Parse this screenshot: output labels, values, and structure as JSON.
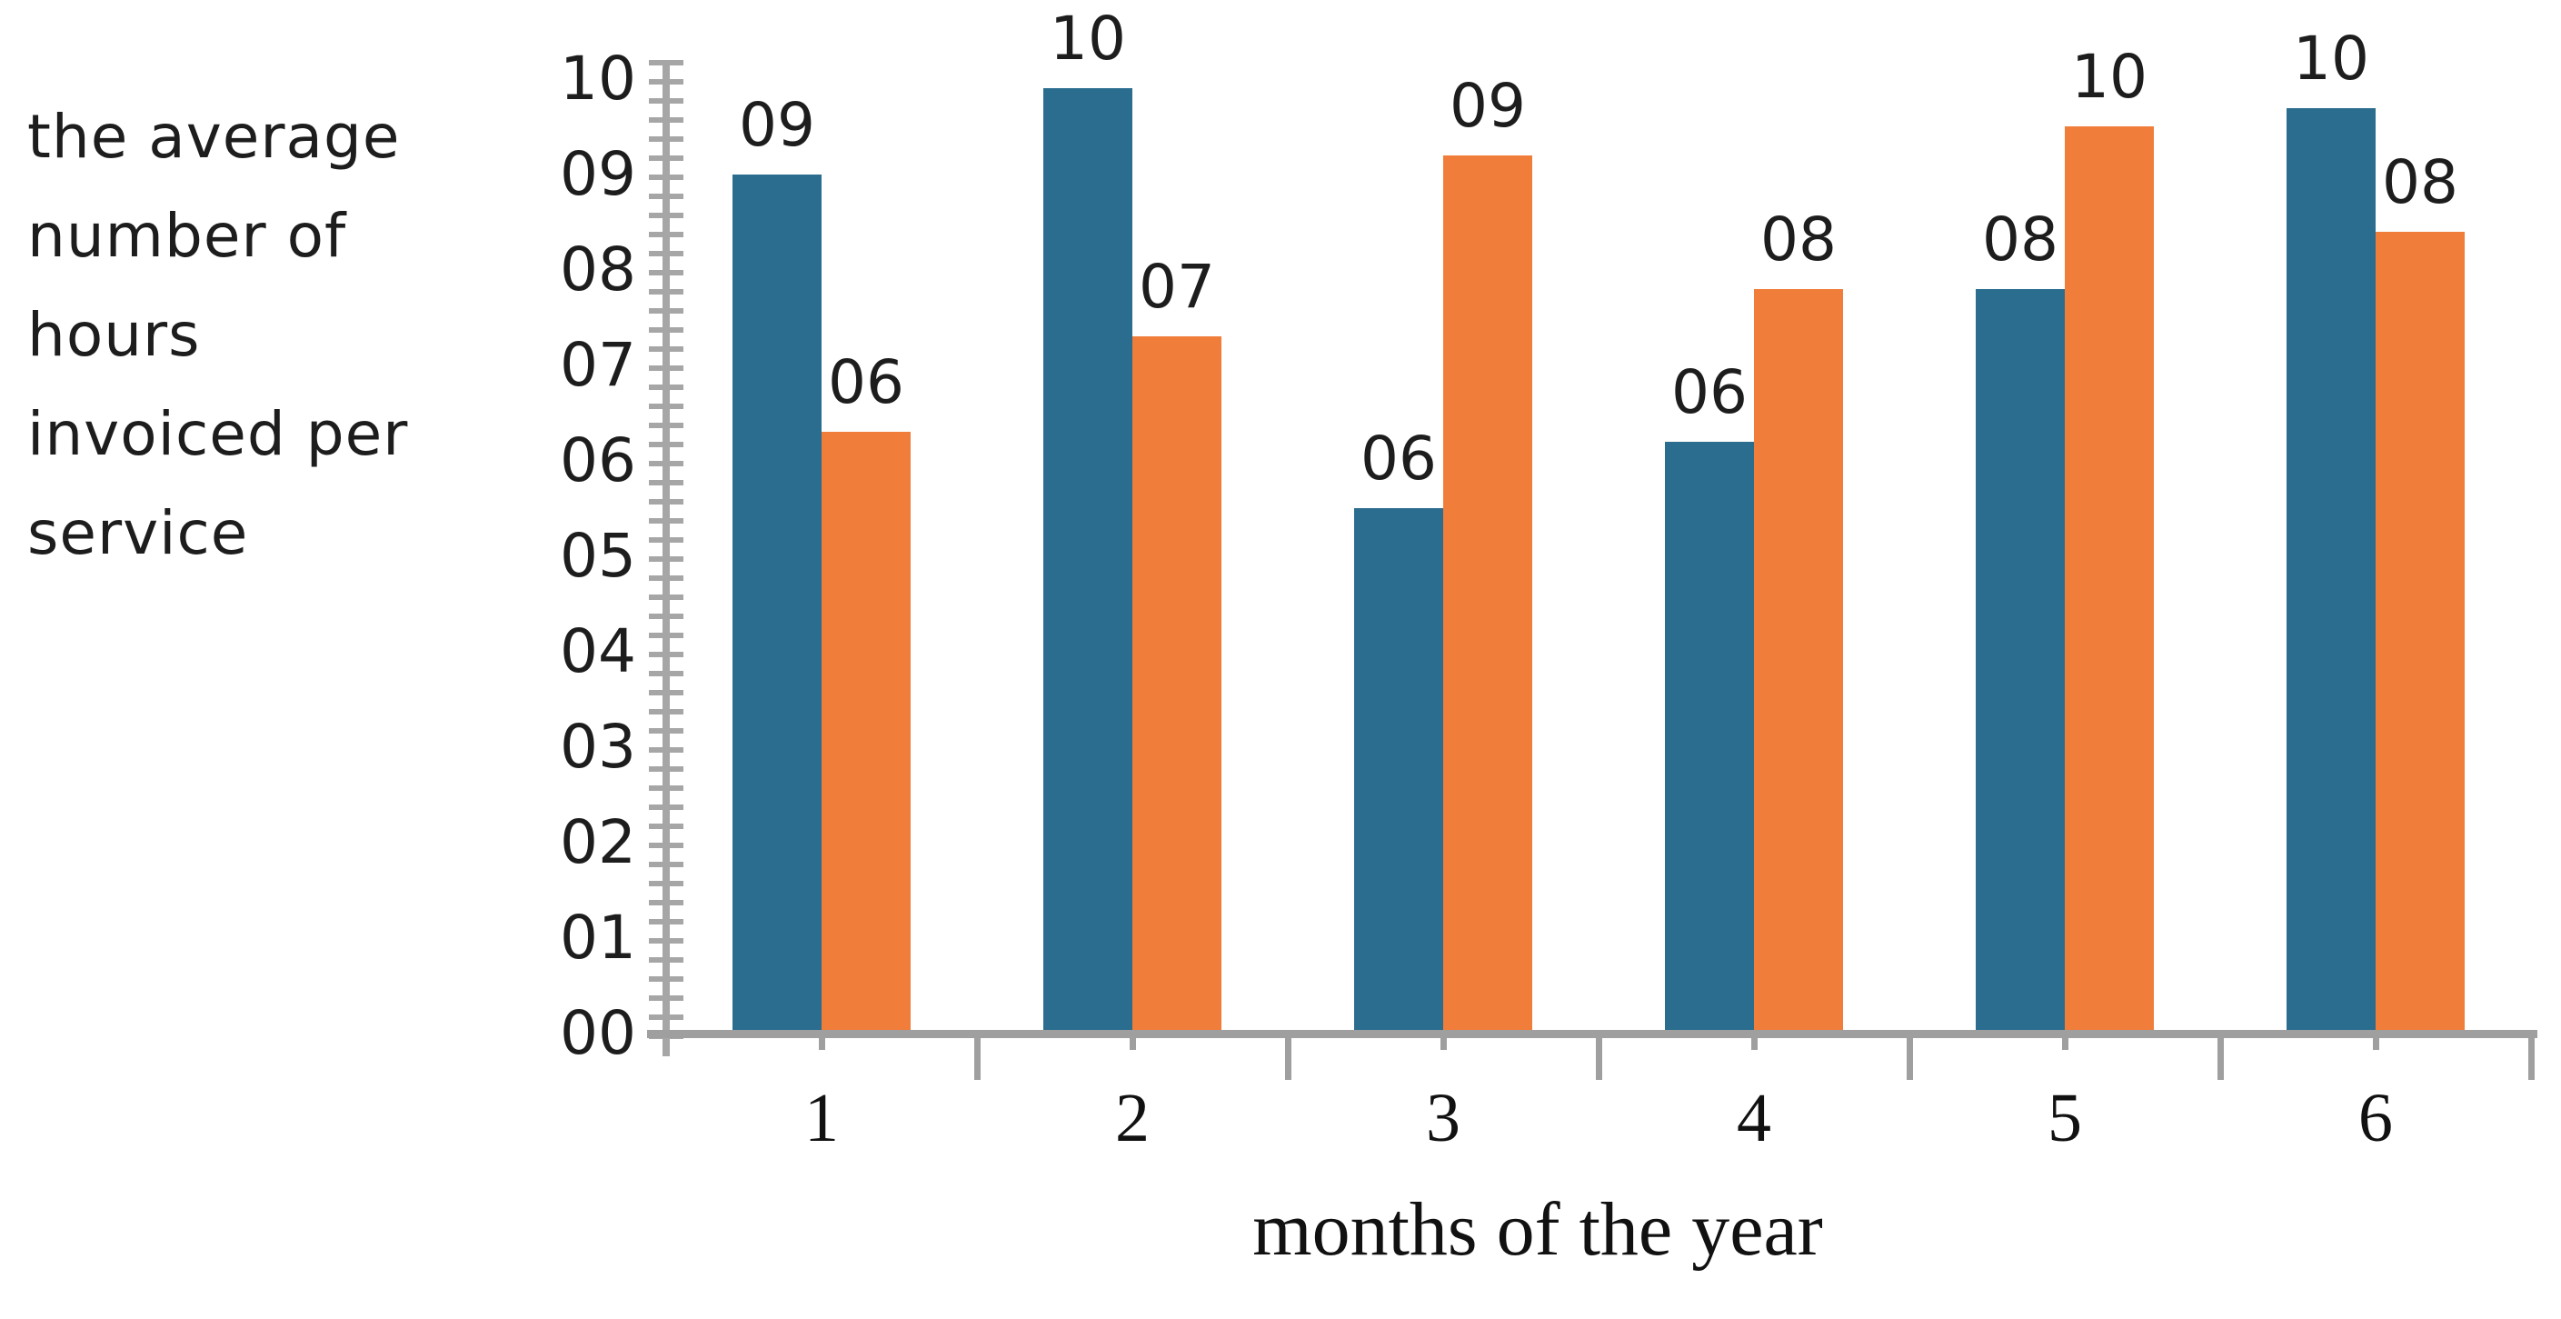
{
  "chart_data": {
    "type": "bar",
    "title": "",
    "categories": [
      "1",
      "2",
      "3",
      "4",
      "5",
      "6"
    ],
    "series": [
      {
        "name": "blue",
        "color": "#2b6d8e",
        "values": [
          9.0,
          9.9,
          5.5,
          6.2,
          7.8,
          9.7
        ],
        "data_labels": [
          "09",
          "10",
          "06",
          "06",
          "08",
          "10"
        ]
      },
      {
        "name": "orange",
        "color": "#f07d3a",
        "values": [
          6.3,
          7.3,
          9.2,
          7.8,
          9.5,
          8.4
        ],
        "data_labels": [
          "06",
          "07",
          "09",
          "08",
          "10",
          "08"
        ]
      }
    ],
    "xlabel": "months of the year",
    "ylabel": "the average number of hours invoiced per service",
    "ylabel_lines": [
      "the average",
      "number of",
      "hours",
      "invoiced per",
      "service"
    ],
    "y_tick_labels": [
      "10",
      "09",
      "08",
      "07",
      "06",
      "05",
      "04",
      "03",
      "02",
      "01",
      "00"
    ],
    "ylim": [
      0,
      10
    ],
    "y_minor_tick_step": 0.2,
    "grid": "off",
    "legend": "none",
    "data_label_position": "above-bar",
    "colors": {
      "axis": "#a6a6a6",
      "text": "#1d1d1d"
    }
  }
}
